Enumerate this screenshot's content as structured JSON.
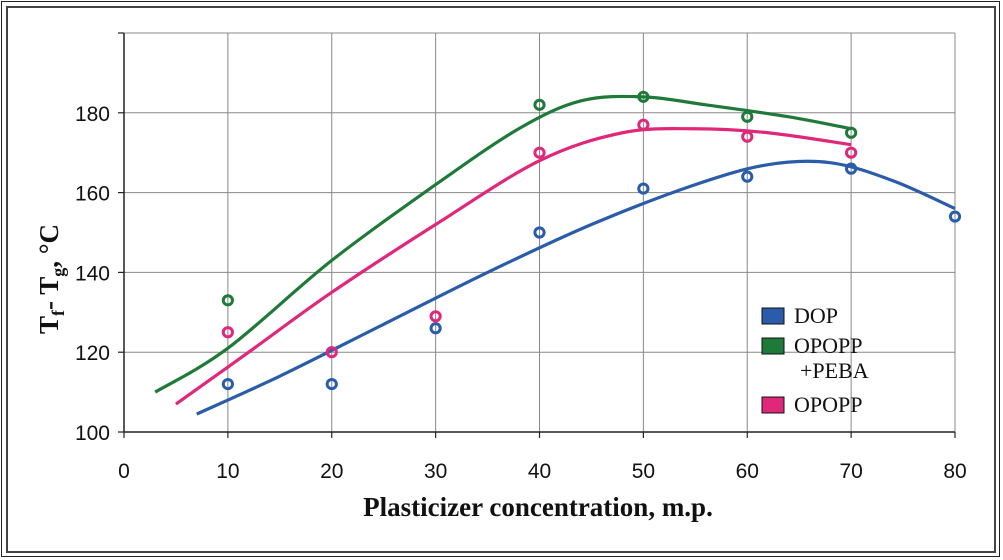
{
  "chart_data": {
    "type": "scatter",
    "title": "",
    "xlabel": "Plasticizer concentration, m.p.",
    "ylabel": "Tf- Tg, °C",
    "xlim": [
      0,
      80
    ],
    "ylim": [
      100,
      200
    ],
    "x_ticks": [
      "0",
      "10",
      "20",
      "30",
      "40",
      "50",
      "60",
      "70",
      "80"
    ],
    "y_ticks": [
      "100",
      "120",
      "140",
      "160",
      "180"
    ],
    "grid": true,
    "legend_position": "bottom-right",
    "series": [
      {
        "name": "DOP",
        "color": "#2a5caa",
        "points": [
          [
            10,
            112
          ],
          [
            20,
            112
          ],
          [
            30,
            126
          ],
          [
            40,
            150
          ],
          [
            50,
            161
          ],
          [
            60,
            164
          ],
          [
            70,
            166
          ],
          [
            80,
            154
          ]
        ],
        "fit": [
          [
            7,
            104.5
          ],
          [
            15,
            114
          ],
          [
            25,
            127
          ],
          [
            35,
            140
          ],
          [
            45,
            152
          ],
          [
            55,
            162
          ],
          [
            62,
            167
          ],
          [
            68,
            167.5
          ],
          [
            74,
            163
          ],
          [
            80,
            156
          ]
        ]
      },
      {
        "name": "OPOPP +PEBA",
        "color": "#1f7a3a",
        "points": [
          [
            10,
            133
          ],
          [
            40,
            182
          ],
          [
            50,
            184
          ],
          [
            60,
            179
          ],
          [
            70,
            175
          ]
        ],
        "fit": [
          [
            3,
            110
          ],
          [
            10,
            121
          ],
          [
            20,
            143
          ],
          [
            30,
            162
          ],
          [
            38,
            176
          ],
          [
            44,
            183
          ],
          [
            50,
            184
          ],
          [
            56,
            182
          ],
          [
            64,
            179
          ],
          [
            70,
            176
          ]
        ]
      },
      {
        "name": "OPOPP",
        "color": "#e0287a",
        "points": [
          [
            10,
            125
          ],
          [
            20,
            120
          ],
          [
            30,
            129
          ],
          [
            40,
            170
          ],
          [
            50,
            177
          ],
          [
            60,
            174
          ],
          [
            70,
            170
          ]
        ],
        "fit": [
          [
            5,
            107
          ],
          [
            12,
            120
          ],
          [
            20,
            135
          ],
          [
            30,
            152
          ],
          [
            40,
            168
          ],
          [
            48,
            175
          ],
          [
            55,
            176
          ],
          [
            62,
            175
          ],
          [
            70,
            172
          ]
        ]
      }
    ]
  }
}
